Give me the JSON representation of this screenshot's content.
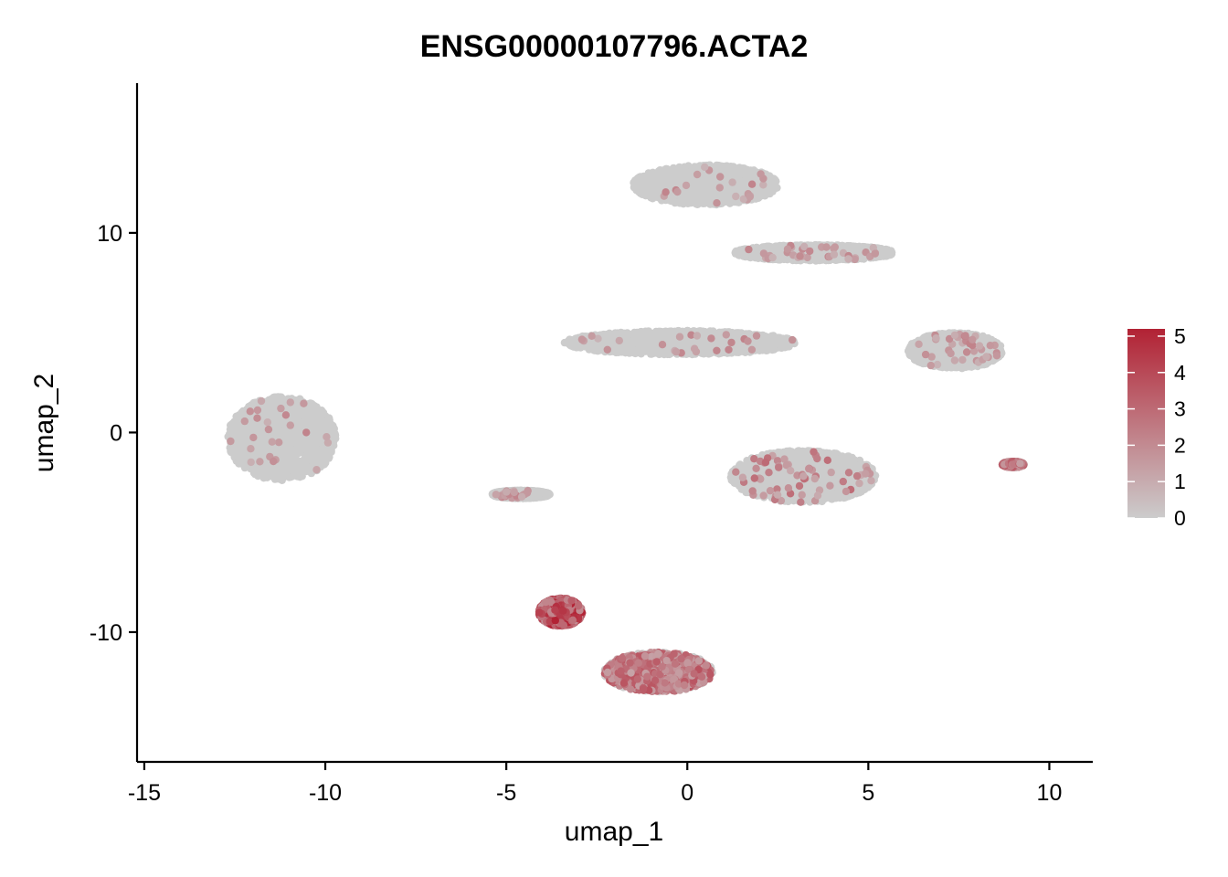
{
  "chart_data": {
    "type": "scatter",
    "title": "ENSG00000107796.ACTA2",
    "xlabel": "umap_1",
    "ylabel": "umap_2",
    "xlim": [
      -15.2,
      11.2
    ],
    "ylim": [
      -16.5,
      17.5
    ],
    "x_ticks": [
      -15,
      -10,
      -5,
      0,
      5,
      10
    ],
    "x_tick_labels": [
      "-15",
      "-10",
      "-5",
      "0",
      "5",
      "10"
    ],
    "y_ticks": [
      -10,
      0,
      10
    ],
    "y_tick_labels": [
      "-10",
      "0",
      "10"
    ],
    "grid": false,
    "legend_placement": "right",
    "color_scale": {
      "low_color": "#cccccc",
      "high_color": "#b22234",
      "min": 0,
      "max": 5.2,
      "ticks": [
        0,
        1,
        2,
        3,
        4,
        5
      ],
      "tick_labels": [
        "0",
        "1",
        "2",
        "3",
        "4",
        "5"
      ]
    },
    "clusters": [
      {
        "center": [
          -11.2,
          -0.3
        ],
        "spread": [
          1.5,
          2.1
        ],
        "expr_rate": 0.02,
        "expr_mean": 1.5
      },
      {
        "center": [
          -0.2,
          4.5
        ],
        "spread": [
          3.2,
          0.6
        ],
        "expr_rate": 0.02,
        "expr_mean": 1.5
      },
      {
        "center": [
          0.5,
          12.4
        ],
        "spread": [
          2.0,
          1.0
        ],
        "expr_rate": 0.02,
        "expr_mean": 1.5
      },
      {
        "center": [
          3.5,
          9.0
        ],
        "spread": [
          2.2,
          0.4
        ],
        "expr_rate": 0.03,
        "expr_mean": 1.5
      },
      {
        "center": [
          7.4,
          4.1
        ],
        "spread": [
          1.3,
          0.9
        ],
        "expr_rate": 0.03,
        "expr_mean": 1.5
      },
      {
        "center": [
          3.2,
          -2.2
        ],
        "spread": [
          2.0,
          1.3
        ],
        "expr_rate": 0.06,
        "expr_mean": 2.0
      },
      {
        "center": [
          -4.6,
          -3.1
        ],
        "spread": [
          0.8,
          0.2
        ],
        "expr_rate": 0.02,
        "expr_mean": 1.5
      },
      {
        "center": [
          -0.8,
          -12.0
        ],
        "spread": [
          1.5,
          1.0
        ],
        "expr_rate": 0.5,
        "expr_mean": 2.5
      },
      {
        "center": [
          -3.5,
          -9.0
        ],
        "spread": [
          0.6,
          0.7
        ],
        "expr_rate": 0.85,
        "expr_mean": 3.5
      },
      {
        "center": [
          9.0,
          -1.6
        ],
        "spread": [
          0.3,
          0.15
        ],
        "expr_rate": 0.35,
        "expr_mean": 2.5
      }
    ]
  }
}
